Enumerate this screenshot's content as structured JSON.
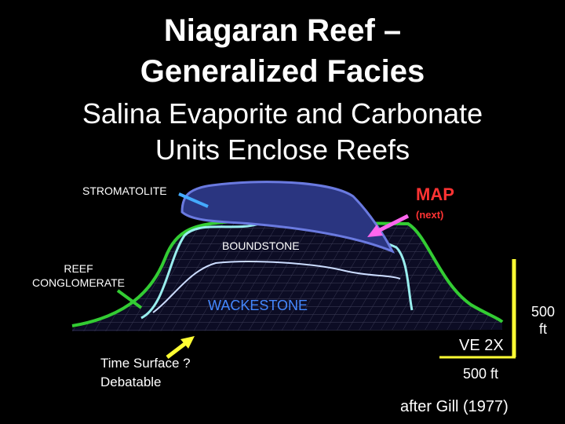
{
  "header": {
    "title": [
      "Niagaran Reef –",
      "Generalized Facies"
    ],
    "subtitle": [
      "Salina Evaporite and Carbonate",
      "Units Enclose Reefs"
    ]
  },
  "labels": {
    "stromatolite": "STROMATOLITE",
    "map": "MAP",
    "next": "(next)",
    "boundstone": "BOUNDSTONE",
    "reef_conglomerate": [
      "REEF",
      "CONGLOMERATE"
    ],
    "wackestone": "WACKESTONE",
    "time_surface": [
      "Time Surface ?",
      "Debatable"
    ],
    "ve": "VE 2X",
    "horizontal_scale": "500 ft",
    "vertical_scale": [
      "500",
      "ft"
    ],
    "credit": "after Gill (1977)"
  }
}
